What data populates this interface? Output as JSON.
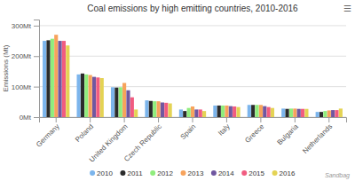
{
  "chart_data": {
    "type": "bar",
    "title": "Coal emissions by high emitting countries, 2010-2016",
    "ylabel": "Emissions (Mt)",
    "categories": [
      "Germany",
      "Poland",
      "United Kingdom",
      "Czech Republic",
      "Spain",
      "Italy",
      "Greece",
      "Bulgaria",
      "Netherlands"
    ],
    "series": [
      {
        "name": "2010",
        "color": "#7cb5ec",
        "values": [
          250,
          140,
          98,
          55,
          25,
          38,
          40,
          28,
          17
        ]
      },
      {
        "name": "2011",
        "color": "#2b2b2b",
        "values": [
          252,
          143,
          97,
          53,
          20,
          38,
          40,
          27,
          17
        ]
      },
      {
        "name": "2012",
        "color": "#90ed7d",
        "values": [
          257,
          140,
          98,
          52,
          30,
          38,
          40,
          28,
          20
        ]
      },
      {
        "name": "2013",
        "color": "#f7a35c",
        "values": [
          270,
          138,
          112,
          52,
          35,
          38,
          40,
          28,
          22
        ]
      },
      {
        "name": "2014",
        "color": "#7057a0",
        "values": [
          250,
          132,
          88,
          48,
          25,
          36,
          36,
          27,
          23
        ]
      },
      {
        "name": "2015",
        "color": "#f15c80",
        "values": [
          250,
          130,
          65,
          47,
          25,
          35,
          33,
          27,
          23
        ]
      },
      {
        "name": "2016",
        "color": "#e4d354",
        "values": [
          235,
          128,
          25,
          45,
          20,
          33,
          30,
          27,
          28
        ]
      }
    ],
    "ylim": [
      0,
      320
    ],
    "yticks": [
      {
        "value": 0,
        "label": "0Mt"
      },
      {
        "value": 100,
        "label": "100Mt"
      },
      {
        "value": 200,
        "label": "200Mt"
      },
      {
        "value": 300,
        "label": "300Mt"
      }
    ],
    "grid": true,
    "legend": "bottom",
    "annotations": [
      "Sandbag",
      "☰"
    ]
  }
}
